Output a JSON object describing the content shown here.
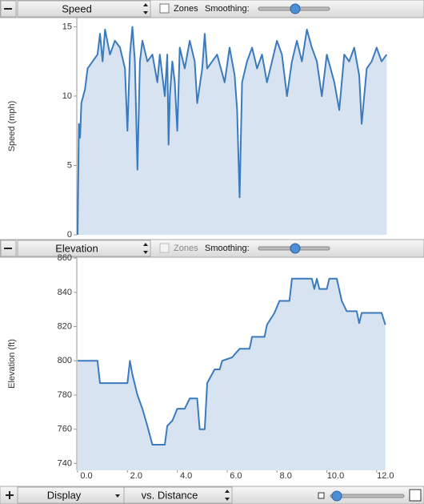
{
  "panels": [
    {
      "selector": "Speed",
      "zones": "Zones",
      "smoothing": "Smoothing:"
    },
    {
      "selector": "Elevation",
      "zones": "Zones",
      "smoothing": "Smoothing:"
    }
  ],
  "chart_data": [
    {
      "type": "line",
      "y_label": "Speed (mph)",
      "color": "#3b7bbd",
      "fill": "#d7e3f1",
      "x": [
        0,
        0.05,
        0.1,
        0.15,
        0.3,
        0.4,
        0.6,
        0.8,
        0.9,
        1.0,
        1.1,
        1.3,
        1.5,
        1.7,
        1.9,
        2.0,
        2.1,
        2.2,
        2.3,
        2.4,
        2.5,
        2.6,
        2.8,
        3.0,
        3.2,
        3.3,
        3.5,
        3.6,
        3.65,
        3.7,
        3.8,
        3.9,
        4.0,
        4.1,
        4.3,
        4.5,
        4.7,
        4.8,
        5.0,
        5.1,
        5.2,
        5.4,
        5.6,
        5.9,
        6.1,
        6.3,
        6.4,
        6.5,
        6.6,
        6.8,
        7.0,
        7.2,
        7.4,
        7.6,
        7.8,
        8.0,
        8.2,
        8.4,
        8.6,
        8.8,
        9.0,
        9.2,
        9.4,
        9.6,
        9.8,
        10.0,
        10.3,
        10.5,
        10.7,
        10.9,
        11.1,
        11.3,
        11.4,
        11.6,
        11.8,
        12.0,
        12.2,
        12.4
      ],
      "values": [
        0,
        8,
        7,
        9.5,
        10.5,
        12,
        12.5,
        13,
        14.5,
        12.5,
        14.8,
        13,
        14,
        13.5,
        12,
        7.5,
        13,
        15,
        12.5,
        4.7,
        12.5,
        14,
        12.5,
        13,
        11,
        13,
        10,
        13,
        6.5,
        10,
        12.5,
        11,
        7.5,
        13.5,
        12,
        14,
        12.5,
        9.5,
        12,
        14.5,
        12,
        12.5,
        13,
        11,
        13.5,
        11.5,
        9,
        2.7,
        11,
        12.5,
        13.5,
        12,
        13,
        11,
        12.5,
        14,
        13,
        10,
        12.5,
        14,
        12.5,
        14.8,
        13.5,
        12.5,
        10,
        13,
        11,
        9,
        13,
        12.5,
        13.5,
        11.5,
        8,
        12,
        12.5,
        13.5,
        12.5,
        13
      ],
      "xlim": [
        0,
        13.9
      ],
      "ylim": [
        0,
        15.2
      ],
      "yticks": [
        0,
        5,
        10,
        15
      ]
    },
    {
      "type": "line",
      "y_label": "Elevation (ft)",
      "color": "#3b7bbd",
      "fill": "#d7e3f1",
      "x": [
        0,
        0.8,
        0.9,
        2.0,
        2.1,
        2.2,
        2.4,
        2.6,
        2.8,
        3.0,
        3.5,
        3.6,
        3.8,
        4.0,
        4.3,
        4.5,
        4.8,
        4.9,
        5.1,
        5.2,
        5.5,
        5.7,
        5.8,
        6.2,
        6.5,
        6.9,
        7.0,
        7.5,
        7.6,
        7.9,
        8.1,
        8.5,
        8.6,
        9.4,
        9.5,
        9.6,
        9.7,
        10.0,
        10.1,
        10.4,
        10.6,
        10.8,
        11.2,
        11.3,
        11.4,
        12.2,
        12.35
      ],
      "values": [
        800,
        800,
        787,
        787,
        800,
        792,
        780,
        772,
        762,
        751,
        751,
        762,
        765,
        772,
        772,
        778,
        778,
        760,
        760,
        787,
        795,
        795,
        800,
        802,
        807,
        807,
        814,
        814,
        821,
        828,
        835,
        835,
        848,
        848,
        842,
        848,
        842,
        842,
        848,
        848,
        835,
        829,
        829,
        822,
        828,
        828,
        821
      ],
      "xlim": [
        0,
        13.9
      ],
      "ylim": [
        736,
        861
      ],
      "yticks": [
        740,
        760,
        780,
        800,
        820,
        840,
        860
      ],
      "xticks": [
        {
          "value": 0,
          "label": "0.0"
        },
        {
          "value": 2,
          "label": "2.0"
        },
        {
          "value": 4,
          "label": "4.0"
        },
        {
          "value": 6,
          "label": "6.0"
        },
        {
          "value": 8,
          "label": "8.0"
        },
        {
          "value": 10,
          "label": "10.0"
        },
        {
          "value": 12,
          "label": "12.0"
        }
      ]
    }
  ],
  "footer": {
    "display": "Display",
    "mode": "vs. Distance"
  }
}
